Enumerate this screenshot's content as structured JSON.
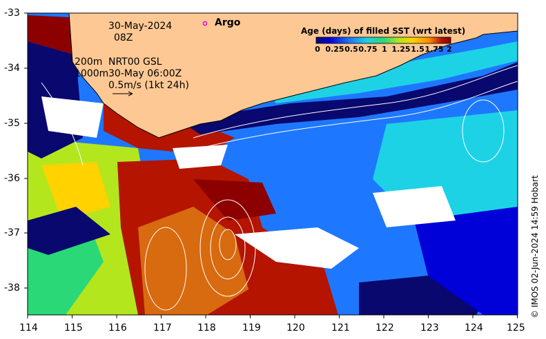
{
  "map": {
    "annotations": {
      "date": "30-May-2024",
      "time": "08Z",
      "depth_200": "200m",
      "depth_1000": "1000m",
      "product": "NRT00 GSL",
      "product_time": "30-May 06:00Z",
      "scale_text": "0.5m/s (1kt 24h)"
    },
    "argo_label": "Argo",
    "legend": {
      "title": "Age (days) of filled SST (wrt latest)",
      "ticks": [
        "0",
        "0.25",
        "0.5",
        "0.75",
        "1",
        "1.25",
        "1.5",
        "1.75",
        "2"
      ],
      "colors": [
        "#08086e",
        "#0000d8",
        "#1e78ff",
        "#1ed2e6",
        "#2ad878",
        "#b4e61e",
        "#ffd200",
        "#ff8c00",
        "#b41400",
        "#8c0000"
      ]
    },
    "x_ticks": [
      "114",
      "115",
      "116",
      "117",
      "118",
      "119",
      "120",
      "121",
      "122",
      "123",
      "124",
      "125"
    ],
    "y_ticks": [
      "-33",
      "-34",
      "-35",
      "-36",
      "-37",
      "-38"
    ],
    "credit": "© IMOS 02-Jun-2024 14:59 Hobart",
    "colors": {
      "land": "#fdc894",
      "argo_marker": "#e600e6"
    }
  }
}
